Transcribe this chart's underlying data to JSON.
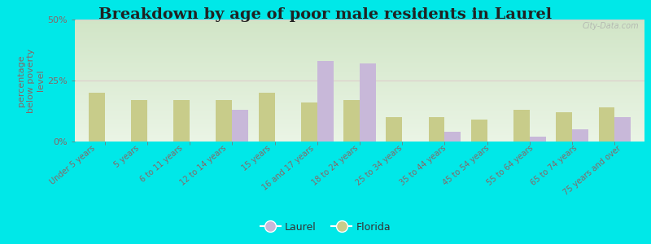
{
  "title": "Breakdown by age of poor male residents in Laurel",
  "ylabel": "percentage\nbelow poverty\nlevel",
  "categories": [
    "Under 5 years",
    "5 years",
    "6 to 11 years",
    "12 to 14 years",
    "15 years",
    "16 and 17 years",
    "18 to 24 years",
    "25 to 34 years",
    "35 to 44 years",
    "45 to 54 years",
    "55 to 64 years",
    "65 to 74 years",
    "75 years and over"
  ],
  "laurel_values": [
    0,
    0,
    0,
    13,
    0,
    33,
    32,
    0,
    4,
    0,
    2,
    5,
    10
  ],
  "florida_values": [
    20,
    17,
    17,
    17,
    20,
    16,
    17,
    10,
    10,
    9,
    13,
    12,
    14
  ],
  "laurel_color": "#c8b8d9",
  "florida_color": "#c8cc8a",
  "outer_bg": "#00e8e8",
  "ylim": [
    0,
    50
  ],
  "yticks": [
    0,
    25,
    50
  ],
  "ytick_labels": [
    "0%",
    "25%",
    "50%"
  ],
  "title_fontsize": 14,
  "axis_label_fontsize": 8,
  "tick_label_fontsize": 8,
  "xtick_fontsize": 7,
  "legend_laurel": "Laurel",
  "legend_florida": "Florida",
  "watermark": "City-Data.com",
  "bar_width": 0.38,
  "plot_bg_top": "#d8e8c8",
  "plot_bg_bottom": "#e8f0e0"
}
